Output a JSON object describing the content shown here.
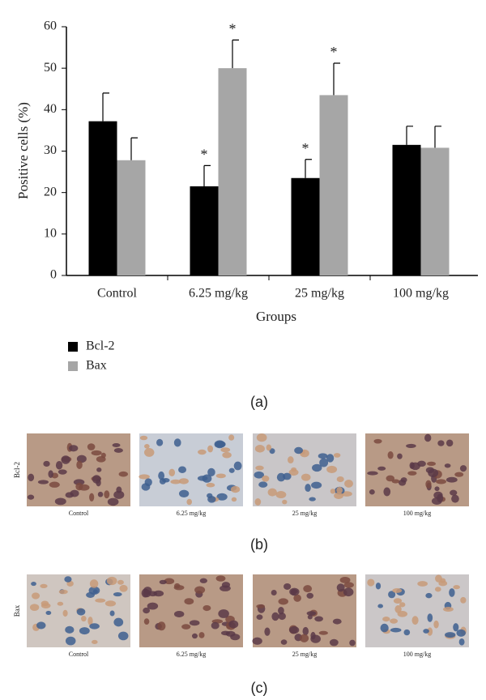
{
  "chart_data": {
    "type": "bar",
    "ylabel": "Positive cells (%)",
    "xlabel": "Groups",
    "categories": [
      "Control",
      "6.25 mg/kg",
      "25 mg/kg",
      "100 mg/kg"
    ],
    "series": [
      {
        "name": "Bcl-2",
        "color": "#000000",
        "values": [
          37.2,
          21.5,
          23.5,
          31.5
        ],
        "errors": [
          6.8,
          5.0,
          4.5,
          4.5
        ],
        "markers": [
          null,
          "*",
          "*",
          null
        ]
      },
      {
        "name": "Bax",
        "color": "#a6a6a6",
        "values": [
          27.8,
          50.0,
          43.5,
          30.8
        ],
        "errors": [
          5.4,
          6.8,
          7.7,
          5.2
        ],
        "markers": [
          null,
          "*",
          "*",
          null
        ]
      }
    ],
    "ylim": [
      0,
      60
    ],
    "yticks": [
      0,
      10,
      20,
      30,
      40,
      50,
      60
    ],
    "grid": false,
    "legend": "bottom-left",
    "panel_label": "(a)"
  },
  "panel_b": {
    "row_label": "Bcl-2",
    "captions": [
      "Control",
      "6.25 mg/kg",
      "25 mg/kg",
      "100 mg/kg"
    ],
    "panel_label": "(b)"
  },
  "panel_c": {
    "row_label": "Bax",
    "captions": [
      "Control",
      "6.25 mg/kg",
      "25 mg/kg",
      "100 mg/kg"
    ],
    "panel_label": "(c)"
  }
}
